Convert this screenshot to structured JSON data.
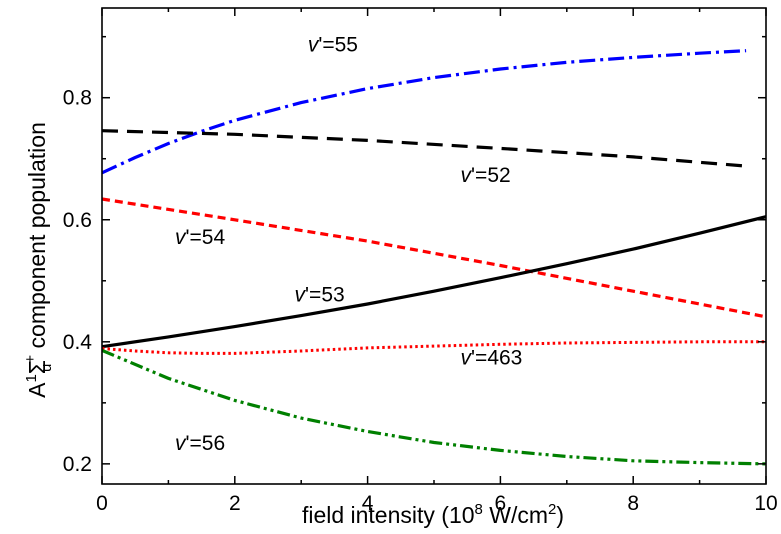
{
  "chart_data": {
    "type": "line",
    "title": "",
    "xlabel": {
      "prefix": "field intensity (10",
      "sup": "8",
      "suffix": " W/cm",
      "sup2": "2",
      "close": ")"
    },
    "ylabel": {
      "prefix": "A",
      "sup": "1",
      "sigma": "Σ",
      "sub": "u",
      "sup2": "+",
      "suffix": " component population"
    },
    "xlim": [
      0,
      10
    ],
    "ylim": [
      0.167,
      0.947
    ],
    "xticks": [
      0,
      2,
      4,
      6,
      8,
      10
    ],
    "yticks": [
      0.2,
      0.4,
      0.6,
      0.8
    ],
    "ytick_labels": [
      "0.2",
      "0.4",
      "0.6",
      "0.8"
    ],
    "grid": false,
    "legend": "none",
    "series": [
      {
        "label_v": "v",
        "label_rest": "'=55",
        "color": "#0000ff",
        "dash": "dash-dot",
        "x": [
          0,
          0.5,
          1,
          1.5,
          2,
          3,
          4,
          5,
          6,
          7,
          8,
          9,
          9.7
        ],
        "values": [
          0.677,
          0.702,
          0.725,
          0.745,
          0.763,
          0.792,
          0.815,
          0.833,
          0.847,
          0.858,
          0.866,
          0.873,
          0.877
        ]
      },
      {
        "label_v": "v",
        "label_rest": "'=52",
        "color": "#000000",
        "dash": "dash",
        "x": [
          0,
          2,
          4,
          6,
          8,
          9.7
        ],
        "values": [
          0.746,
          0.74,
          0.73,
          0.717,
          0.703,
          0.688
        ]
      },
      {
        "label_v": "v",
        "label_rest": "'=54",
        "color": "#ff0000",
        "dash": "short-dash",
        "x": [
          0,
          2,
          4,
          6,
          8,
          10
        ],
        "values": [
          0.634,
          0.6,
          0.565,
          0.525,
          0.483,
          0.441
        ]
      },
      {
        "label_v": "v",
        "label_rest": "'=53",
        "color": "#000000",
        "dash": "solid",
        "x": [
          0,
          1,
          2,
          3,
          4,
          5,
          6,
          7,
          8,
          9,
          10
        ],
        "values": [
          0.392,
          0.408,
          0.425,
          0.443,
          0.462,
          0.483,
          0.505,
          0.528,
          0.552,
          0.578,
          0.605
        ]
      },
      {
        "label_v": "v",
        "label_rest": "'=463",
        "color": "#ff0000",
        "dash": "dot",
        "x": [
          0,
          0.5,
          1,
          1.5,
          2,
          3,
          4,
          5,
          6,
          7,
          8,
          9,
          10
        ],
        "values": [
          0.389,
          0.385,
          0.382,
          0.381,
          0.381,
          0.385,
          0.39,
          0.393,
          0.396,
          0.398,
          0.399,
          0.4,
          0.4
        ]
      },
      {
        "label_v": "v",
        "label_rest": "'=56",
        "color": "#008000",
        "dash": "dash-dot-dot",
        "x": [
          0,
          1,
          2,
          3,
          4,
          5,
          6,
          7,
          8,
          9,
          10
        ],
        "values": [
          0.386,
          0.34,
          0.304,
          0.275,
          0.253,
          0.235,
          0.222,
          0.212,
          0.205,
          0.202,
          0.2
        ]
      }
    ]
  }
}
